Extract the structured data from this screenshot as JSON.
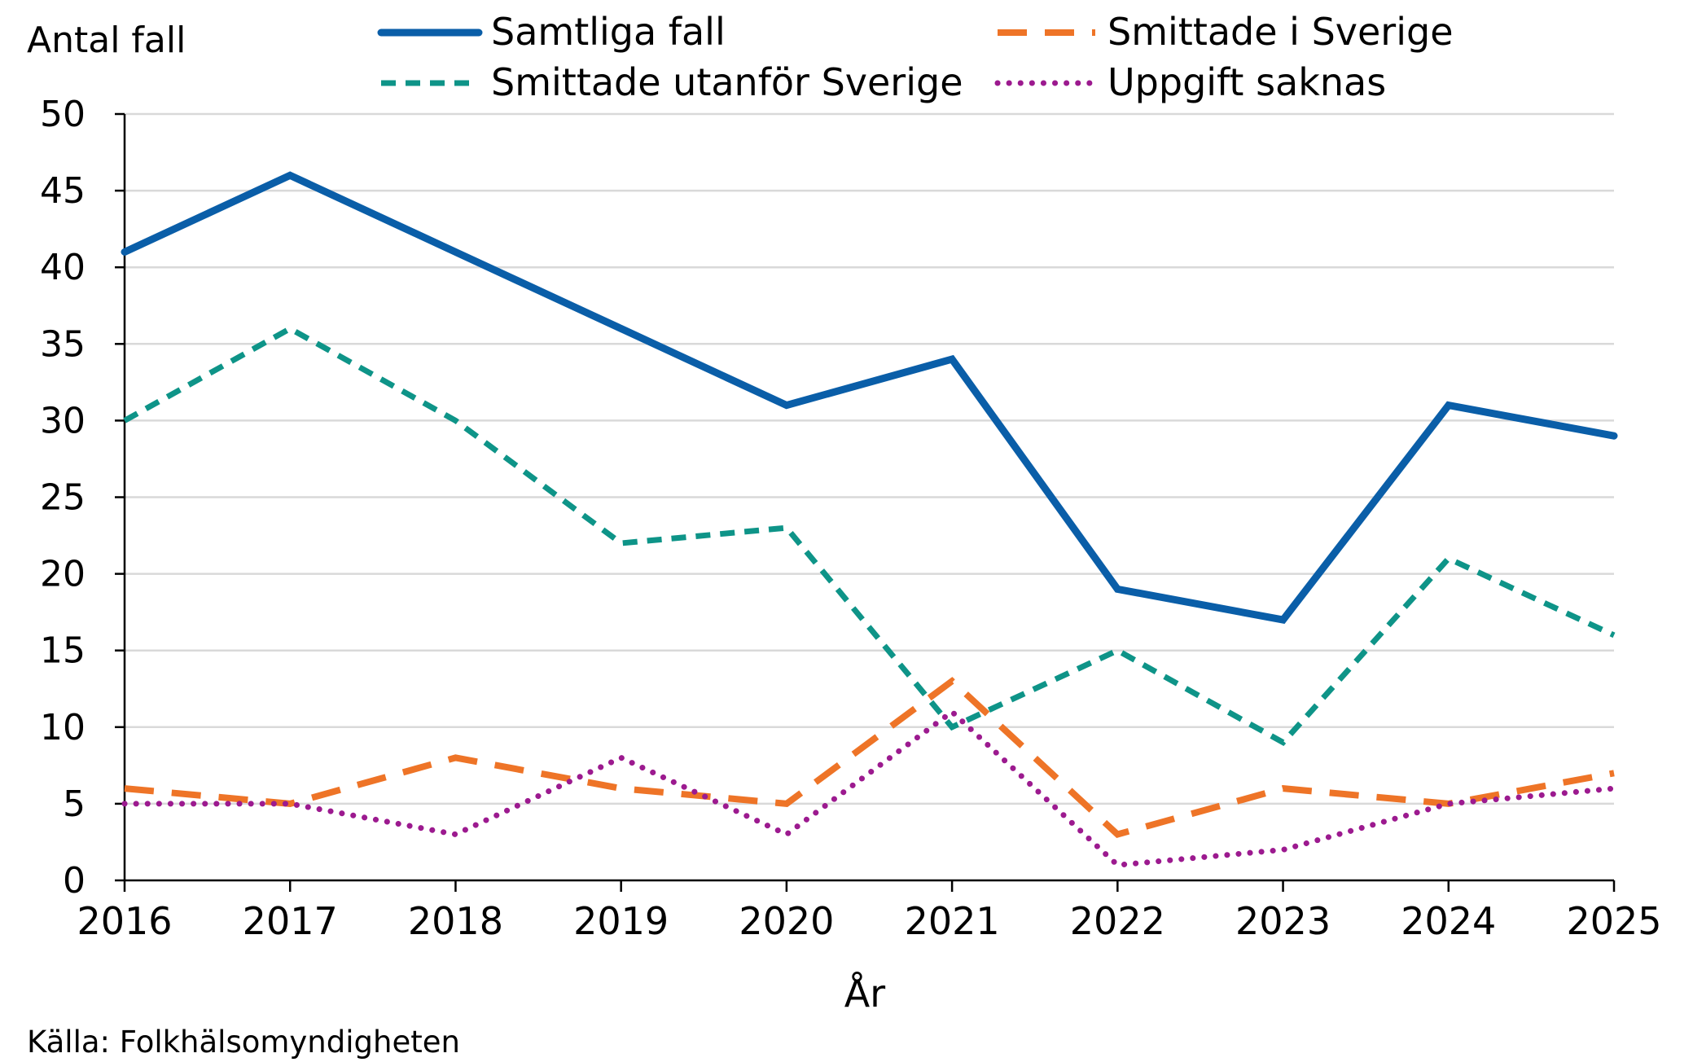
{
  "chart_data": {
    "type": "line",
    "ylabel": "Antal fall",
    "xlabel": "År",
    "source": "Källa: Folkhälsomyndigheten",
    "ylim": [
      0,
      50
    ],
    "yticks": [
      0,
      5,
      10,
      15,
      20,
      25,
      30,
      35,
      40,
      45,
      50
    ],
    "grid": true,
    "legend_position": "top",
    "x": [
      "2016",
      "2017",
      "2018",
      "2019",
      "2020",
      "2021",
      "2022",
      "2023",
      "2024",
      "2025"
    ],
    "series": [
      {
        "name": "Samtliga fall",
        "color": "#0A5EA8",
        "style": "solid",
        "values": [
          41,
          46,
          41,
          36,
          31,
          34,
          19,
          17,
          31,
          29
        ]
      },
      {
        "name": "Smittade i Sverige",
        "color": "#EE7427",
        "style": "dashed",
        "values": [
          6,
          5,
          8,
          6,
          5,
          13,
          3,
          6,
          5,
          7
        ]
      },
      {
        "name": "Smittade utanför Sverige",
        "color": "#0E9488",
        "style": "short-dashed",
        "values": [
          30,
          36,
          30,
          22,
          23,
          10,
          15,
          9,
          21,
          16
        ]
      },
      {
        "name": "Uppgift saknas",
        "color": "#9C1A8F",
        "style": "dotted",
        "values": [
          5,
          5,
          3,
          8,
          3,
          11,
          1,
          2,
          5,
          6
        ]
      }
    ]
  }
}
